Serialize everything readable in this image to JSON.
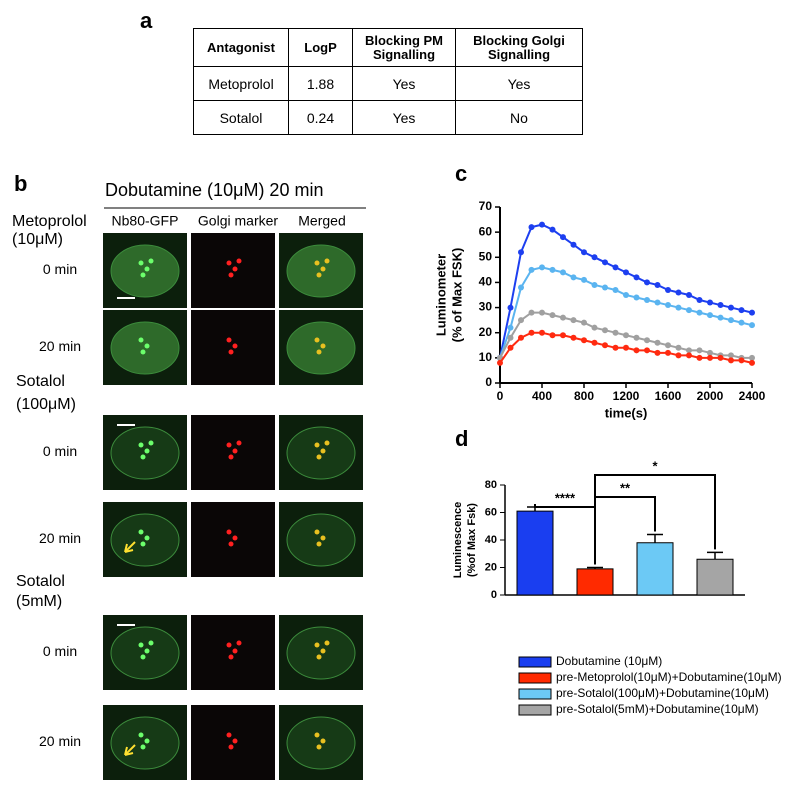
{
  "panel_a": {
    "label": "a",
    "header": [
      "Antagonist",
      "LogP",
      "Blocking PM Signalling",
      "Blocking Golgi Signalling"
    ],
    "rows": [
      [
        "Metoprolol",
        1.88,
        "Yes",
        "Yes"
      ],
      [
        "Sotalol",
        0.24,
        "Yes",
        "No"
      ]
    ]
  },
  "panel_b": {
    "label": "b",
    "title": "Dobutamine (10μM) 20 min",
    "columns": [
      "Nb80-GFP",
      "Golgi marker",
      "Merged"
    ],
    "conditions": [
      [
        "Metoprolol",
        "(10μM)"
      ],
      [
        "Sotalol",
        "(100μM)"
      ],
      [
        "Sotalol",
        "(5mM)"
      ]
    ],
    "times": [
      "0 min",
      "20 min"
    ]
  },
  "chart_data": [
    {
      "type": "line",
      "label": "c",
      "xlabel": "time(s)",
      "ylabel": [
        "Luminometer",
        "(% of Max FSK)"
      ],
      "x": [
        0,
        100,
        200,
        300,
        400,
        500,
        600,
        700,
        800,
        900,
        1000,
        1100,
        1200,
        1300,
        1400,
        1500,
        1600,
        1700,
        1800,
        1900,
        2000,
        2100,
        2200,
        2300,
        2400
      ],
      "series": [
        {
          "color": "#1d3ff0",
          "values": [
            10,
            30,
            52,
            62,
            63,
            61,
            58,
            55,
            52,
            50,
            48,
            46,
            44,
            42,
            40,
            39,
            37,
            36,
            35,
            33,
            32,
            31,
            30,
            29,
            28
          ]
        },
        {
          "color": "#5ab4f0",
          "values": [
            10,
            22,
            38,
            45,
            46,
            45,
            44,
            42,
            41,
            39,
            38,
            37,
            35,
            34,
            33,
            32,
            31,
            30,
            29,
            28,
            27,
            26,
            25,
            24,
            23
          ]
        },
        {
          "color": "#a0a0a0",
          "values": [
            10,
            18,
            25,
            28,
            28,
            27,
            26,
            25,
            24,
            22,
            21,
            20,
            19,
            18,
            17,
            16,
            15,
            14,
            13,
            13,
            12,
            11,
            11,
            10,
            10
          ]
        },
        {
          "color": "#ff2a10",
          "values": [
            8,
            14,
            18,
            20,
            20,
            19,
            19,
            18,
            17,
            16,
            15,
            14,
            14,
            13,
            13,
            12,
            12,
            11,
            11,
            10,
            10,
            10,
            9,
            9,
            8
          ]
        }
      ],
      "xlim": [
        0,
        2400
      ],
      "xticks": [
        0,
        400,
        800,
        1200,
        1600,
        2000,
        2400
      ],
      "ylim": [
        0,
        70
      ],
      "yticks": [
        0,
        10,
        20,
        30,
        40,
        50,
        60,
        70
      ]
    },
    {
      "type": "bar",
      "label": "d",
      "ylabel": [
        "Luminescence",
        "(%of Max Fsk)"
      ],
      "categories": [
        "Dobutamine (10μM)",
        "pre-Metoprolol(10μM)+Dobutamine(10μM)",
        "pre-Sotalol(100μM)+Dobutamine(10μM)",
        "pre-Sotalol(5mM)+Dobutamine(10μM)"
      ],
      "values": [
        61,
        19,
        38,
        26
      ],
      "errors": [
        3,
        1,
        6,
        5
      ],
      "colors": [
        "#1a3ef0",
        "#ff2a00",
        "#6cc9f5",
        "#a5a5a5"
      ],
      "annotations": [
        "****",
        "**",
        "*"
      ],
      "ylim": [
        0,
        80
      ],
      "yticks": [
        0,
        20,
        40,
        60,
        80
      ]
    }
  ]
}
